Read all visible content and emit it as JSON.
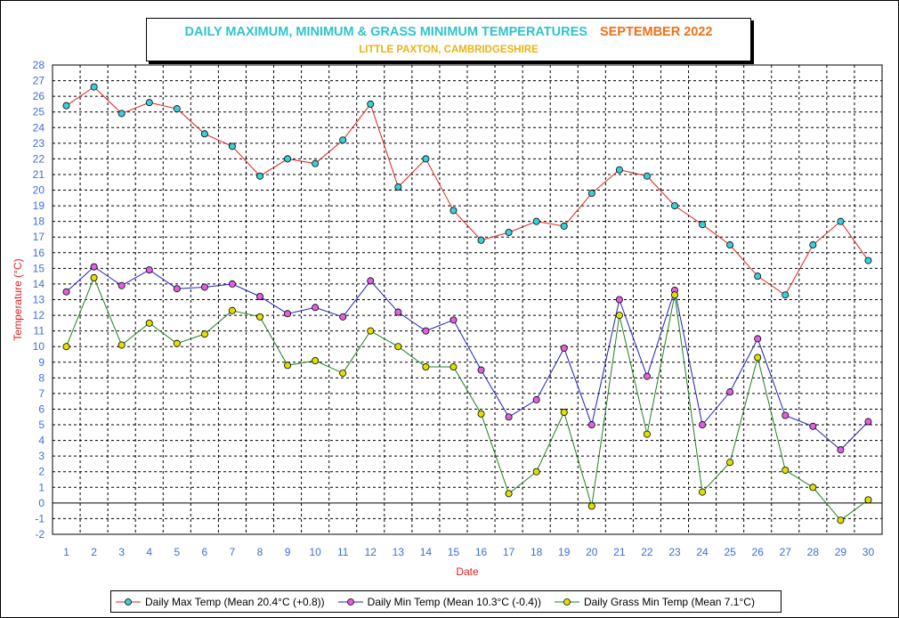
{
  "title": "DAILY MAXIMUM, MINIMUM & GRASS MINIMUM TEMPERATURES",
  "title_month": "SEPTEMBER 2022",
  "subtitle": "LITTLE PAXTON, CAMBRIDGESHIRE",
  "colors": {
    "title": "#2ec4cc",
    "month": "#f07018",
    "subtitle": "#e8b414",
    "axis_labels": "#3b6fd6",
    "axis_titles": "#e02020"
  },
  "chart_data": {
    "type": "line",
    "xlabel": "Date",
    "ylabel": "Temperature (°C)",
    "ylim": [
      -2,
      28
    ],
    "y_ticks": [
      -2,
      -1,
      0,
      1,
      2,
      3,
      4,
      5,
      6,
      7,
      8,
      9,
      10,
      11,
      12,
      13,
      14,
      15,
      16,
      17,
      18,
      19,
      20,
      21,
      22,
      23,
      24,
      25,
      26,
      27,
      28
    ],
    "x": [
      1,
      2,
      3,
      4,
      5,
      6,
      7,
      8,
      9,
      10,
      11,
      12,
      13,
      14,
      15,
      16,
      17,
      18,
      19,
      20,
      21,
      22,
      23,
      24,
      25,
      26,
      27,
      28,
      29,
      30
    ],
    "grid": true,
    "legend_position": "bottom",
    "series": [
      {
        "name": "Daily Max Temp (Mean 20.4°C (+0.8))",
        "line_color": "#e02020",
        "marker_color": "#3ad0d8",
        "values": [
          25.4,
          26.6,
          24.9,
          25.6,
          25.2,
          23.6,
          22.8,
          20.9,
          22.0,
          21.7,
          23.2,
          25.5,
          20.2,
          22.0,
          18.7,
          16.8,
          17.3,
          18.0,
          17.7,
          19.8,
          21.3,
          20.9,
          19.0,
          17.8,
          16.5,
          14.5,
          13.3,
          16.5,
          18.0,
          15.5
        ]
      },
      {
        "name": "Daily Min Temp (Mean 10.3°C (-0.4))",
        "line_color": "#2020c0",
        "marker_color": "#e060e0",
        "values": [
          13.5,
          15.1,
          13.9,
          14.9,
          13.7,
          13.8,
          14.0,
          13.2,
          12.1,
          12.5,
          11.9,
          14.2,
          12.2,
          11.0,
          11.7,
          8.5,
          5.5,
          6.6,
          9.9,
          5.0,
          13.0,
          8.1,
          13.6,
          5.0,
          7.1,
          10.5,
          5.6,
          4.9,
          3.4,
          5.2
        ]
      },
      {
        "name": "Daily Grass Min Temp (Mean 7.1°C)",
        "line_color": "#208020",
        "marker_color": "#e0e000",
        "values": [
          10.0,
          14.4,
          10.1,
          11.5,
          10.2,
          10.8,
          12.3,
          11.9,
          8.8,
          9.1,
          8.3,
          11.0,
          10.0,
          8.7,
          8.7,
          5.7,
          0.6,
          2.0,
          5.8,
          -0.2,
          12.0,
          4.4,
          13.3,
          0.7,
          2.6,
          9.3,
          2.1,
          1.0,
          -1.1,
          0.2
        ]
      }
    ]
  }
}
